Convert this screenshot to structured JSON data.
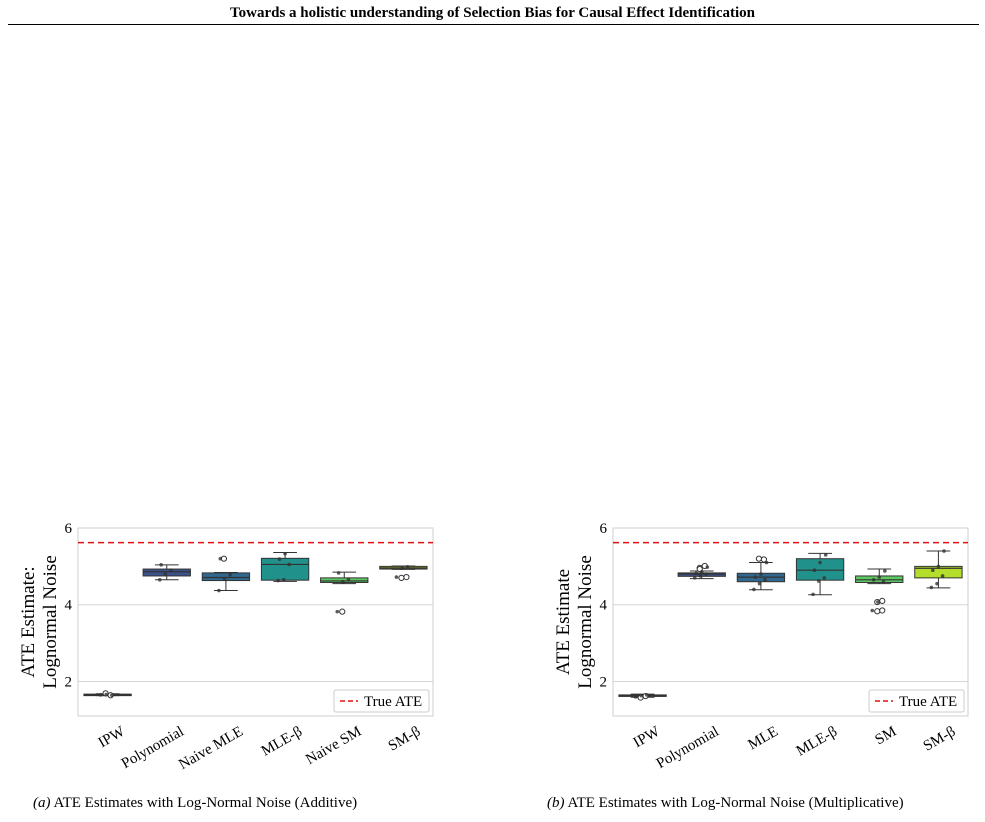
{
  "header": {
    "title": "Towards a holistic understanding of Selection Bias for Causal Effect Identification"
  },
  "legend_label": "True ATE",
  "panels": [
    {
      "caption_label": "(a)",
      "caption_text": "ATE Estimates with Log-Normal Noise (Additive)",
      "ylabel_lines": [
        "ATE Estimate:",
        "Lognormal Noise"
      ]
    },
    {
      "caption_label": "(b)",
      "caption_text": "ATE Estimates with Log-Normal Noise (Multiplicative)",
      "ylabel_lines": [
        "ATE Estimate",
        "Lognormal Noise"
      ]
    }
  ],
  "chart_data": [
    {
      "type": "box",
      "ylim": [
        1.1,
        6.0
      ],
      "yticks": [
        2,
        4,
        6
      ],
      "grid": true,
      "legend_placement": "bottom-right",
      "true_ate": 5.62,
      "categories": [
        "IPW",
        "Polynomial",
        "Naive MLE",
        "MLE-β",
        "Naive SM",
        "SM-β"
      ],
      "colors": [
        "#440154",
        "#3b528b",
        "#31688e",
        "#21918c",
        "#5ec962",
        "#b5de2b"
      ],
      "boxes": [
        {
          "whislo": 1.63,
          "q1": 1.64,
          "med": 1.65,
          "q3": 1.67,
          "whishi": 1.68,
          "fliers": [
            1.69,
            1.64
          ],
          "points": [
            1.65,
            1.66,
            1.64
          ]
        },
        {
          "whislo": 4.65,
          "q1": 4.75,
          "med": 4.86,
          "q3": 4.93,
          "whishi": 5.04,
          "fliers": [],
          "points": [
            4.65,
            4.8,
            4.9,
            5.04
          ]
        },
        {
          "whislo": 4.37,
          "q1": 4.63,
          "med": 4.71,
          "q3": 4.83,
          "whishi": 4.84,
          "fliers": [
            5.2
          ],
          "points": [
            4.37,
            4.68,
            4.78,
            5.2
          ]
        },
        {
          "whislo": 4.61,
          "q1": 4.64,
          "med": 5.05,
          "q3": 5.21,
          "whishi": 5.36,
          "fliers": [],
          "points": [
            4.63,
            4.65,
            5.05,
            5.19,
            5.33
          ]
        },
        {
          "whislo": 4.55,
          "q1": 4.58,
          "med": 4.62,
          "q3": 4.7,
          "whishi": 4.85,
          "fliers": [
            3.82
          ],
          "points": [
            3.82,
            4.6,
            4.66,
            4.83
          ]
        },
        {
          "whislo": 4.92,
          "q1": 4.93,
          "med": 4.96,
          "q3": 5.0,
          "whishi": 5.01,
          "fliers": [
            4.7,
            4.72
          ],
          "points": [
            4.72,
            4.95,
            4.99
          ]
        }
      ]
    },
    {
      "type": "box",
      "ylim": [
        1.1,
        6.0
      ],
      "yticks": [
        2,
        4,
        6
      ],
      "grid": true,
      "legend_placement": "bottom-right",
      "true_ate": 5.62,
      "categories": [
        "IPW",
        "Polynomial",
        "MLE",
        "MLE-β",
        "SM",
        "SM-β"
      ],
      "colors": [
        "#440154",
        "#3b528b",
        "#31688e",
        "#21918c",
        "#5ec962",
        "#b5de2b"
      ],
      "boxes": [
        {
          "whislo": 1.59,
          "q1": 1.61,
          "med": 1.63,
          "q3": 1.65,
          "whishi": 1.67,
          "fliers": [
            1.58,
            1.62
          ],
          "points": [
            1.6,
            1.63,
            1.65,
            1.62
          ]
        },
        {
          "whislo": 4.68,
          "q1": 4.74,
          "med": 4.8,
          "q3": 4.83,
          "whishi": 4.88,
          "fliers": [
            4.96,
            5.01,
            4.93
          ],
          "points": [
            4.7,
            4.75,
            4.8,
            4.82,
            4.86,
            4.98
          ]
        },
        {
          "whislo": 4.39,
          "q1": 4.6,
          "med": 4.72,
          "q3": 4.82,
          "whishi": 5.1,
          "fliers": [
            5.2,
            5.18
          ],
          "points": [
            4.4,
            4.55,
            4.65,
            4.72,
            4.8,
            5.1
          ]
        },
        {
          "whislo": 4.26,
          "q1": 4.64,
          "med": 4.9,
          "q3": 5.2,
          "whishi": 5.34,
          "fliers": [],
          "points": [
            4.27,
            4.62,
            4.7,
            4.9,
            5.1,
            5.3
          ]
        },
        {
          "whislo": 4.55,
          "q1": 4.58,
          "med": 4.65,
          "q3": 4.75,
          "whishi": 4.93,
          "fliers": [
            3.83,
            4.1,
            4.07,
            3.85
          ],
          "points": [
            3.85,
            4.07,
            4.6,
            4.65,
            4.72,
            4.88
          ]
        },
        {
          "whislo": 4.44,
          "q1": 4.7,
          "med": 4.95,
          "q3": 5.0,
          "whishi": 5.4,
          "fliers": [],
          "points": [
            4.45,
            4.55,
            4.75,
            4.9,
            5.0,
            5.4
          ]
        }
      ]
    }
  ]
}
